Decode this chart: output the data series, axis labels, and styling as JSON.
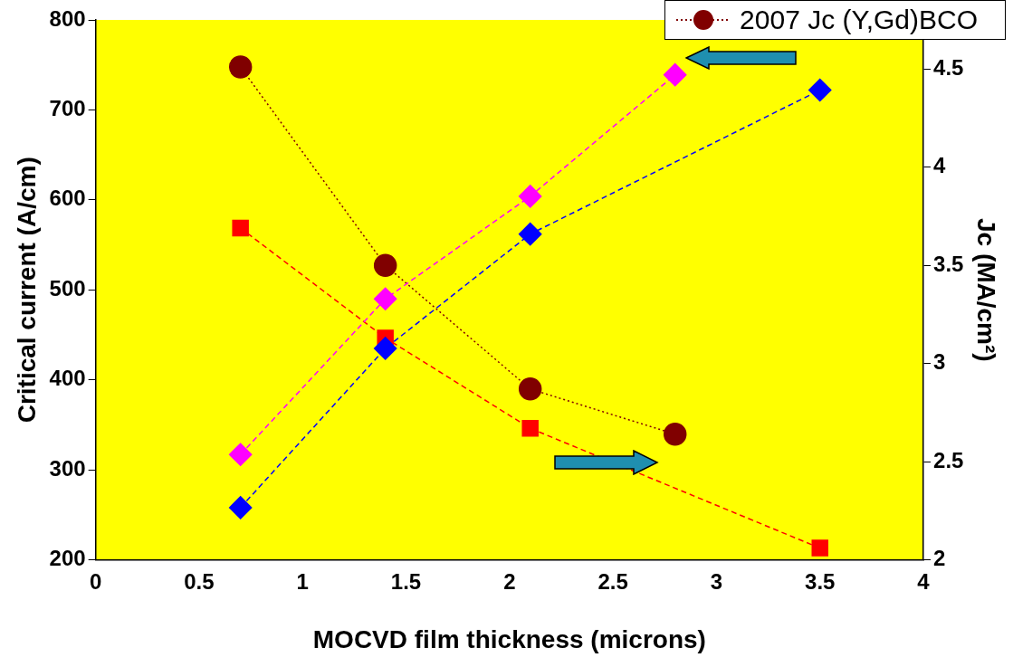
{
  "chart_data": {
    "type": "line",
    "xlabel": "MOCVD film thickness (microns)",
    "ylabel": "Critical current (A/cm)",
    "y2label": "Jc (MA/cm²)",
    "xlim": [
      0,
      4
    ],
    "xticks": [
      0,
      0.5,
      1,
      1.5,
      2,
      2.5,
      3,
      3.5,
      4
    ],
    "ylim": [
      200,
      800
    ],
    "yticks": [
      200,
      300,
      400,
      500,
      600,
      700,
      800
    ],
    "y2lim": [
      2,
      4.75
    ],
    "y2ticks": [
      2,
      2.5,
      3,
      3.5,
      4,
      4.5
    ],
    "legend": "top right",
    "grid": false,
    "line_style": "dashed",
    "series": [
      {
        "color": "#0000ff",
        "marker": "diamond",
        "x": [
          0.7,
          1.4,
          2.1,
          3.5
        ],
        "values": [
          258,
          435,
          562,
          722
        ]
      },
      {
        "color": "#ff00ff",
        "marker": "diamond",
        "x": [
          0.7,
          1.4,
          2.1,
          2.8
        ],
        "values": [
          317,
          490,
          604,
          739
        ]
      },
      {
        "color": "#ff0000",
        "marker": "square",
        "axis": "y2",
        "x": [
          0.7,
          1.4,
          2.1,
          3.5
        ],
        "values": [
          3.69,
          3.13,
          2.67,
          2.06
        ]
      },
      {
        "name": "2007 Jc (Y,Gd)BCO",
        "color": "#800000",
        "marker": "circle",
        "line_style": "dotted",
        "axis": "y2",
        "x": [
          0.7,
          1.4,
          2.1,
          2.8
        ],
        "values": [
          4.51,
          3.5,
          2.87,
          2.64
        ]
      }
    ]
  }
}
